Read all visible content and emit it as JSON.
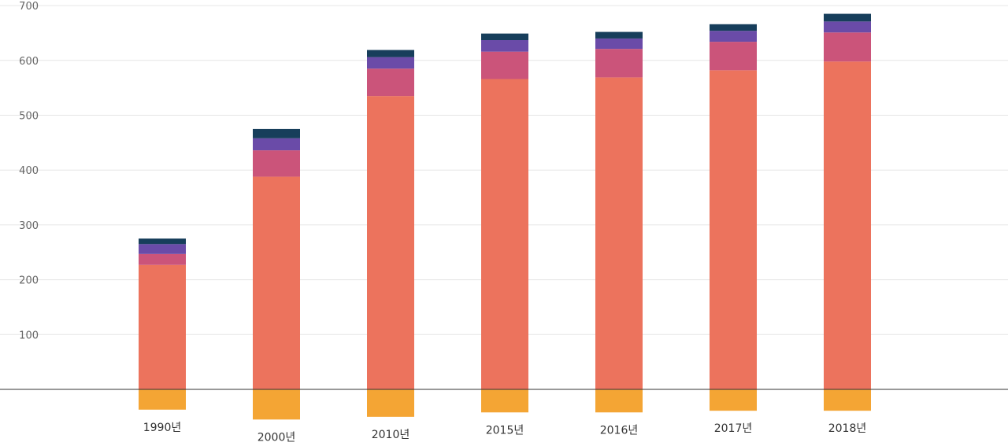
{
  "chart_data": {
    "type": "bar",
    "stacked": true,
    "categories": [
      "1990년",
      "2000년",
      "2010년",
      "2015년",
      "2016년",
      "2017년",
      "2018년"
    ],
    "series": [
      {
        "color": "#f4a534",
        "values": [
          -37,
          -55,
          -50,
          -42,
          -42,
          -39,
          -39
        ]
      },
      {
        "color": "#ec735d",
        "values": [
          227,
          388,
          535,
          566,
          569,
          582,
          598
        ]
      },
      {
        "color": "#cb547a",
        "values": [
          20,
          48,
          50,
          50,
          52,
          52,
          53
        ]
      },
      {
        "color": "#6a4ba8",
        "values": [
          18,
          22,
          21,
          21,
          19,
          20,
          20
        ]
      },
      {
        "color": "#173e5b",
        "values": [
          10,
          17,
          13,
          12,
          12,
          12,
          14
        ]
      }
    ],
    "ylim": [
      -100,
      700
    ],
    "yticks": [
      100,
      200,
      300,
      400,
      500,
      600,
      700
    ],
    "grid": true
  }
}
